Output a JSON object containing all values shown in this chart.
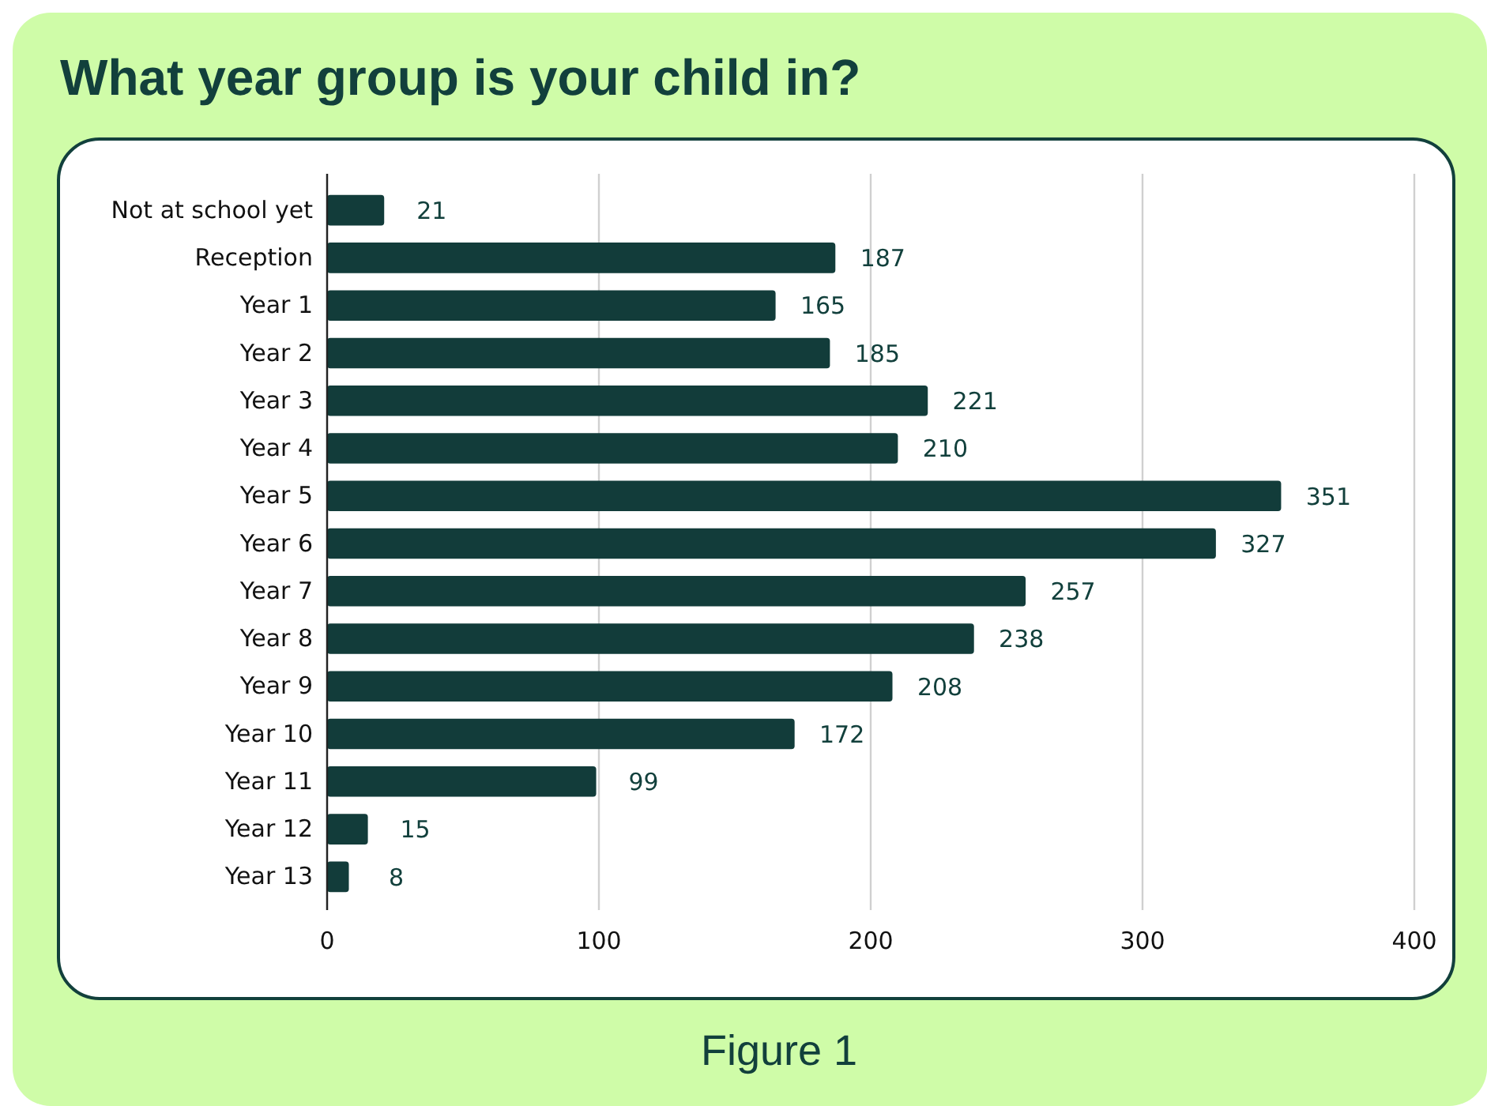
{
  "chart_data": {
    "type": "bar",
    "title": "What year group is your child in?",
    "categories": [
      "Not at school yet",
      "Reception",
      "Year 1",
      "Year 2",
      "Year 3",
      "Year 4",
      "Year 5",
      "Year 6",
      "Year 7",
      "Year 8",
      "Year 9",
      "Year 10",
      "Year 11",
      "Year 12",
      "Year 13"
    ],
    "values": [
      21,
      187,
      165,
      185,
      221,
      210,
      351,
      327,
      257,
      238,
      208,
      172,
      99,
      15,
      8
    ],
    "color": "#123c3a",
    "orientation": "horizontal",
    "xlim": [
      0,
      400
    ],
    "xticks": [
      0,
      100,
      200,
      300,
      400
    ],
    "grid": "x",
    "data_labels": true,
    "annotations": [
      "Figure 1"
    ]
  }
}
